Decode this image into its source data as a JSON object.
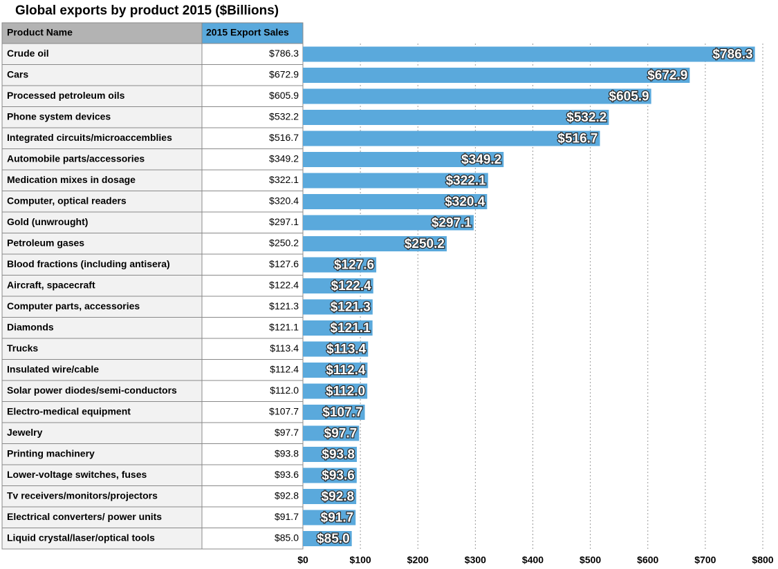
{
  "chart_data": {
    "type": "bar",
    "orientation": "horizontal",
    "title": "Global exports by product 2015 ($Billions)",
    "columns": [
      "Product Name",
      "2015 Export Sales"
    ],
    "categories": [
      "Crude oil",
      "Cars",
      "Processed petroleum oils",
      "Phone system devices",
      "Integrated circuits/microaccemblies",
      "Automobile parts/accessories",
      "Medication mixes in dosage",
      "Computer, optical readers",
      "Gold (unwrought)",
      "Petroleum gases",
      "Blood fractions (including antisera)",
      "Aircraft, spacecraft",
      "Computer parts, accessories",
      "Diamonds",
      "Trucks",
      "Insulated wire/cable",
      "Solar power diodes/semi-conductors",
      "Electro-medical equipment",
      "Jewelry",
      "Printing machinery",
      "Lower-voltage switches, fuses",
      "Tv receivers/monitors/projectors",
      "Electrical converters/ power units",
      "Liquid crystal/laser/optical tools"
    ],
    "values": [
      786.3,
      672.9,
      605.9,
      532.2,
      516.7,
      349.2,
      322.1,
      320.4,
      297.1,
      250.2,
      127.6,
      122.4,
      121.3,
      121.1,
      113.4,
      112.4,
      112.0,
      107.7,
      97.7,
      93.8,
      93.6,
      92.8,
      91.7,
      85.0
    ],
    "value_labels": [
      "$786.3",
      "$672.9",
      "$605.9",
      "$532.2",
      "$516.7",
      "$349.2",
      "$322.1",
      "$320.4",
      "$297.1",
      "$250.2",
      "$127.6",
      "$122.4",
      "$121.3",
      "$121.1",
      "$113.4",
      "$112.4",
      "$112.0",
      "$107.7",
      "$97.7",
      "$93.8",
      "$93.6",
      "$92.8",
      "$91.7",
      "$85.0"
    ],
    "color": "#5aa9dc",
    "xlim": [
      0,
      800
    ],
    "xticks": [
      {
        "value": 0,
        "label": "$0"
      },
      {
        "value": 100,
        "label": "$100"
      },
      {
        "value": 200,
        "label": "$200"
      },
      {
        "value": 300,
        "label": "$300"
      },
      {
        "value": 400,
        "label": "$400"
      },
      {
        "value": 500,
        "label": "$500"
      },
      {
        "value": 600,
        "label": "$600"
      },
      {
        "value": 700,
        "label": "$700"
      },
      {
        "value": 800,
        "label": "$800"
      }
    ],
    "grid": true
  }
}
